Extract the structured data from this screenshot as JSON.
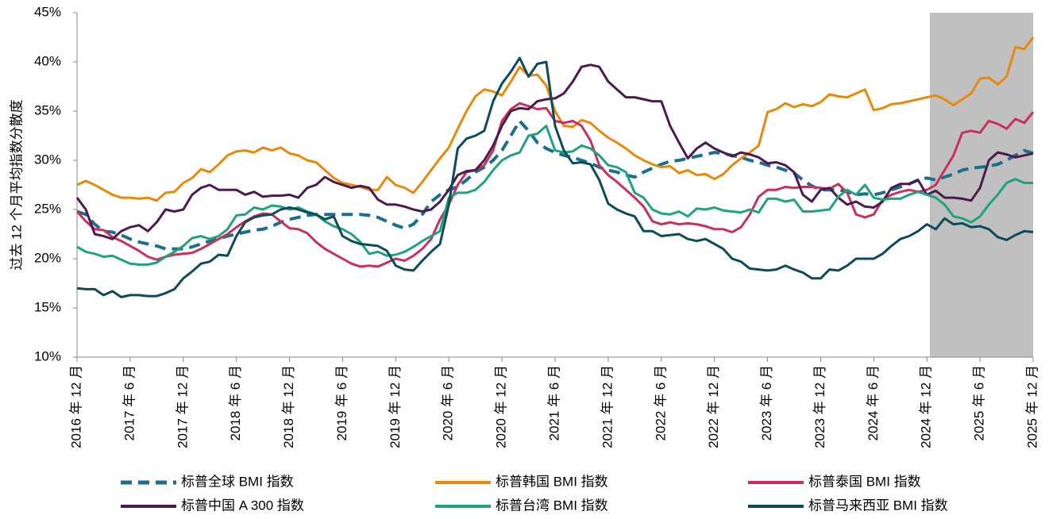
{
  "chart_data": {
    "type": "line",
    "y_label": "过去 12 个月平均指数分散度",
    "categories": [
      "2016 年 12 月",
      null,
      null,
      null,
      null,
      null,
      "2017 年 6 月",
      null,
      null,
      null,
      null,
      null,
      "2017 年 12 月",
      null,
      null,
      null,
      null,
      null,
      "2018 年 6 月",
      null,
      null,
      null,
      null,
      null,
      "2018 年 12 月",
      null,
      null,
      null,
      null,
      null,
      "2019 年 6 月",
      null,
      null,
      null,
      null,
      null,
      "2019 年 12 月",
      null,
      null,
      null,
      null,
      null,
      "2020 年 6 月",
      null,
      null,
      null,
      null,
      null,
      "2020 年 12 月",
      null,
      null,
      null,
      null,
      null,
      "2021 年 6 月",
      null,
      null,
      null,
      null,
      null,
      "2021 年 12 月",
      null,
      null,
      null,
      null,
      null,
      "2022 年 6 月",
      null,
      null,
      null,
      null,
      null,
      "2022 年 12 月",
      null,
      null,
      null,
      null,
      null,
      "2023 年 6 月",
      null,
      null,
      null,
      null,
      null,
      "2023 年 12 月",
      null,
      null,
      null,
      null,
      null,
      "2024 年 6 月",
      null,
      null,
      null,
      null,
      null,
      "2024 年 12 月",
      null,
      null,
      null,
      null,
      null,
      "2025 年 6 月",
      null,
      null,
      null,
      null,
      null,
      "2025 年 12 月"
    ],
    "series": [
      {
        "name": "标普全球 BMI 指数",
        "color": "#1b6f8c",
        "style": "dashed",
        "values": [
          24.8,
          24.5,
          23.5,
          22.8,
          22.7,
          22.4,
          22.0,
          21.7,
          21.5,
          21.3,
          21.0,
          21.0,
          21.0,
          21.2,
          21.5,
          21.8,
          22.0,
          22.3,
          22.5,
          22.7,
          22.9,
          23.0,
          23.3,
          23.7,
          24.0,
          24.2,
          24.4,
          24.5,
          24.5,
          24.5,
          24.5,
          24.5,
          24.5,
          24.4,
          24.2,
          23.8,
          23.4,
          23.1,
          23.5,
          24.5,
          25.8,
          26.5,
          27.0,
          27.3,
          28.0,
          28.8,
          29.3,
          30.0,
          31.0,
          32.5,
          34.0,
          33.0,
          31.8,
          31.2,
          30.8,
          30.5,
          30.3,
          30.0,
          29.7,
          29.3,
          29.0,
          28.8,
          28.5,
          28.3,
          28.8,
          29.2,
          29.6,
          29.9,
          30.0,
          30.2,
          30.4,
          30.6,
          30.8,
          30.7,
          30.5,
          30.3,
          30.0,
          29.8,
          29.5,
          29.3,
          29.0,
          28.7,
          28.0,
          27.4,
          27.0,
          27.0,
          27.0,
          26.8,
          26.5,
          26.6,
          26.5,
          26.7,
          27.0,
          27.3,
          27.6,
          28.0,
          28.2,
          28.0,
          28.3,
          28.6,
          29.0,
          29.2,
          29.3,
          29.4,
          29.6,
          30.0,
          30.5,
          31.0,
          30.7
        ]
      },
      {
        "name": "标普韩国 BMI 指数",
        "color": "#e8890c",
        "style": "solid",
        "values": [
          27.5,
          27.9,
          27.5,
          27.0,
          26.5,
          26.2,
          26.2,
          26.1,
          26.2,
          25.9,
          26.7,
          26.8,
          27.7,
          28.2,
          29.1,
          28.8,
          29.6,
          30.5,
          30.9,
          31.0,
          30.8,
          31.3,
          31.0,
          31.3,
          30.7,
          30.5,
          30.0,
          29.8,
          29.0,
          28.2,
          27.7,
          27.5,
          27.3,
          27.0,
          27.0,
          28.3,
          27.5,
          27.2,
          26.7,
          27.8,
          29.0,
          30.2,
          31.3,
          33.2,
          35.0,
          36.5,
          37.2,
          37.0,
          36.6,
          38.0,
          39.5,
          38.6,
          38.7,
          37.6,
          35.0,
          33.5,
          33.4,
          34.1,
          33.8,
          33.0,
          32.3,
          31.8,
          31.2,
          30.5,
          30.0,
          29.6,
          29.3,
          29.4,
          28.7,
          29.0,
          28.5,
          28.6,
          28.1,
          28.6,
          29.5,
          30.2,
          30.8,
          31.5,
          34.9,
          35.2,
          35.8,
          35.4,
          35.7,
          35.5,
          35.9,
          36.7,
          36.5,
          36.4,
          36.8,
          37.2,
          35.1,
          35.3,
          35.7,
          35.8,
          36.0,
          36.2,
          36.4,
          36.6,
          36.2,
          35.6,
          36.2,
          36.8,
          38.3,
          38.4,
          37.7,
          38.5,
          41.5,
          41.3,
          42.5
        ]
      },
      {
        "name": "标普泰国 BMI 指数",
        "color": "#c8315e",
        "style": "solid",
        "values": [
          24.8,
          23.8,
          23.0,
          22.9,
          22.2,
          21.8,
          21.3,
          20.8,
          20.2,
          19.9,
          20.2,
          20.4,
          20.5,
          20.6,
          21.0,
          21.5,
          22.0,
          22.5,
          23.2,
          23.8,
          24.3,
          24.6,
          24.5,
          23.8,
          23.1,
          23.0,
          22.6,
          21.7,
          21.0,
          20.5,
          20.0,
          19.5,
          19.2,
          19.3,
          19.2,
          19.6,
          20.0,
          19.8,
          20.3,
          21.0,
          22.0,
          24.0,
          25.5,
          27.5,
          28.8,
          29.0,
          29.5,
          31.0,
          34.0,
          35.2,
          35.8,
          35.5,
          35.2,
          35.3,
          34.0,
          33.8,
          34.0,
          33.5,
          32.0,
          29.5,
          28.5,
          27.8,
          27.0,
          26.2,
          25.3,
          23.8,
          23.5,
          23.7,
          23.5,
          23.6,
          23.5,
          23.3,
          23.0,
          23.0,
          22.7,
          23.2,
          24.5,
          26.3,
          27.0,
          27.0,
          27.3,
          27.2,
          27.3,
          27.3,
          27.2,
          27.1,
          27.6,
          26.7,
          24.5,
          24.2,
          24.5,
          26.0,
          26.5,
          26.8,
          27.0,
          26.8,
          27.0,
          27.5,
          29.0,
          30.5,
          32.8,
          33.0,
          32.8,
          34.0,
          33.7,
          33.2,
          34.2,
          33.8,
          34.9
        ]
      },
      {
        "name": "标普中国 A 300 指数",
        "color": "#4b1a4e",
        "style": "solid",
        "values": [
          26.2,
          25.0,
          22.5,
          22.3,
          22.0,
          22.8,
          23.2,
          23.4,
          22.8,
          23.7,
          25.0,
          24.8,
          25.0,
          26.5,
          27.2,
          27.5,
          27.0,
          27.0,
          27.0,
          26.5,
          26.8,
          26.3,
          26.4,
          26.4,
          26.5,
          26.2,
          27.2,
          27.5,
          28.3,
          27.8,
          27.5,
          27.2,
          27.4,
          27.2,
          26.0,
          25.5,
          25.5,
          25.3,
          25.0,
          24.8,
          25.0,
          25.8,
          27.0,
          28.5,
          28.9,
          29.0,
          30.0,
          31.5,
          33.5,
          35.0,
          35.3,
          35.2,
          36.0,
          36.2,
          36.3,
          36.8,
          38.0,
          39.5,
          39.7,
          39.5,
          38.0,
          37.2,
          36.4,
          36.4,
          36.2,
          36.0,
          36.0,
          33.5,
          31.8,
          30.2,
          31.2,
          31.8,
          31.2,
          30.8,
          30.4,
          30.8,
          30.6,
          30.3,
          29.7,
          29.8,
          29.5,
          28.8,
          26.5,
          25.8,
          27.0,
          27.2,
          26.2,
          25.5,
          25.8,
          25.3,
          25.2,
          25.8,
          27.2,
          27.6,
          27.6,
          28.0,
          26.5,
          26.9,
          26.2,
          26.2,
          26.1,
          25.9,
          27.2,
          30.0,
          30.8,
          30.6,
          30.3,
          30.5,
          30.7
        ]
      },
      {
        "name": "标普台湾 BMI 指数",
        "color": "#1fa37f",
        "style": "solid",
        "values": [
          21.2,
          20.7,
          20.5,
          20.2,
          20.3,
          19.9,
          19.5,
          19.4,
          19.4,
          19.6,
          20.2,
          20.7,
          21.3,
          22.1,
          22.3,
          22.0,
          22.3,
          23.0,
          24.4,
          24.5,
          25.2,
          25.0,
          25.4,
          25.3,
          25.0,
          25.2,
          24.8,
          24.5,
          23.8,
          23.3,
          23.0,
          22.5,
          21.7,
          20.5,
          20.7,
          20.3,
          20.4,
          20.7,
          21.2,
          21.8,
          22.3,
          22.8,
          26.2,
          26.7,
          26.7,
          27.0,
          27.8,
          29.0,
          30.0,
          30.5,
          30.8,
          32.5,
          32.7,
          33.5,
          31.0,
          30.8,
          30.9,
          31.5,
          31.2,
          30.5,
          29.5,
          29.3,
          28.8,
          26.7,
          26.2,
          25.0,
          24.6,
          24.5,
          24.8,
          24.3,
          25.1,
          25.0,
          25.2,
          24.9,
          24.8,
          24.7,
          25.0,
          24.7,
          26.1,
          26.1,
          25.8,
          26.0,
          24.8,
          24.8,
          24.9,
          25.0,
          26.3,
          27.0,
          26.5,
          27.5,
          26.2,
          26.0,
          26.1,
          26.1,
          26.5,
          26.8,
          26.5,
          26.2,
          25.5,
          24.3,
          24.1,
          23.7,
          24.3,
          25.5,
          26.5,
          27.7,
          28.1,
          27.7,
          27.7
        ]
      },
      {
        "name": "标普马来西亚 BMI 指数",
        "color": "#0d4a5a",
        "style": "solid",
        "values": [
          17.0,
          16.9,
          16.9,
          16.3,
          16.7,
          16.1,
          16.3,
          16.3,
          16.2,
          16.2,
          16.5,
          16.9,
          18.0,
          18.7,
          19.5,
          19.7,
          20.4,
          20.3,
          22.3,
          23.7,
          24.2,
          24.4,
          24.5,
          25.0,
          25.2,
          25.0,
          24.7,
          24.5,
          24.0,
          24.3,
          22.3,
          21.8,
          21.5,
          21.4,
          21.3,
          20.8,
          19.3,
          18.9,
          18.8,
          19.8,
          20.7,
          21.5,
          25.5,
          31.2,
          32.2,
          32.5,
          33.0,
          36.0,
          37.8,
          39.0,
          40.4,
          38.5,
          39.8,
          40.0,
          33.5,
          31.0,
          29.7,
          29.8,
          29.6,
          28.0,
          25.6,
          25.0,
          24.6,
          24.3,
          22.8,
          22.8,
          22.3,
          22.4,
          22.5,
          22.0,
          21.8,
          22.0,
          21.5,
          21.0,
          20.0,
          19.7,
          19.0,
          18.9,
          18.8,
          18.9,
          19.3,
          18.9,
          18.6,
          18.0,
          18.0,
          18.9,
          18.8,
          19.3,
          20.0,
          20.0,
          20.0,
          20.5,
          21.3,
          22.0,
          22.3,
          22.8,
          23.5,
          23.0,
          24.1,
          23.5,
          23.6,
          23.2,
          23.3,
          23.0,
          22.2,
          21.9,
          22.4,
          22.8,
          22.7
        ]
      }
    ],
    "ylim": [
      10,
      45
    ],
    "yticks": [
      {
        "value": 10,
        "label": "10%"
      },
      {
        "value": 15,
        "label": "15%"
      },
      {
        "value": 20,
        "label": "20%"
      },
      {
        "value": 25,
        "label": "25%"
      },
      {
        "value": 30,
        "label": "30%"
      },
      {
        "value": 35,
        "label": "35%"
      },
      {
        "value": 40,
        "label": "40%"
      },
      {
        "value": 45,
        "label": "45%"
      }
    ],
    "grid": false,
    "legend": "bottom"
  }
}
